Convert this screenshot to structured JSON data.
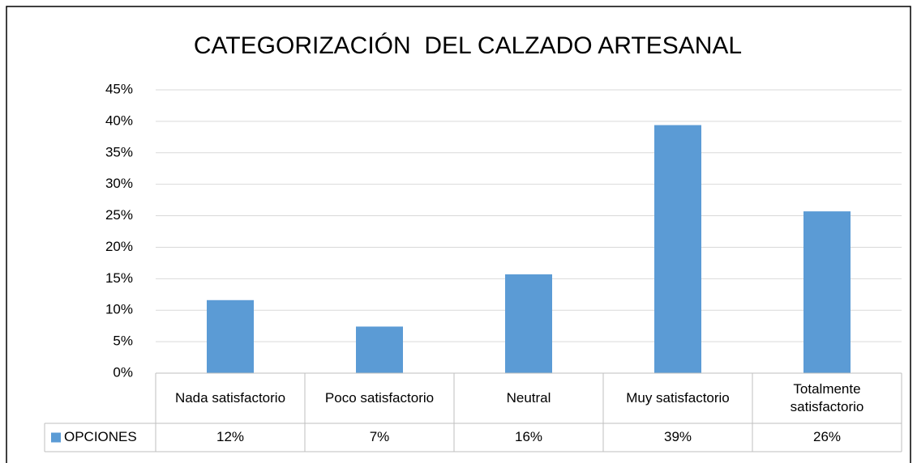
{
  "chart_data": {
    "type": "bar",
    "title": "CATEGORIZACIÓN  DEL CALZADO ARTESANAL",
    "categories": [
      "Nada satisfactorio",
      "Poco satisfactorio",
      "Neutral",
      "Muy satisfactorio",
      "Totalmente satisfactorio"
    ],
    "series": [
      {
        "name": "OPCIONES",
        "color": "#5b9bd5",
        "values": [
          11.6,
          7.4,
          15.7,
          39.4,
          25.7
        ],
        "value_labels": [
          "12%",
          "7%",
          "16%",
          "39%",
          "26%"
        ]
      }
    ],
    "ylim": [
      0,
      45
    ],
    "yticks": [
      {
        "value": 0,
        "label": "0%"
      },
      {
        "value": 5,
        "label": "5%"
      },
      {
        "value": 10,
        "label": "10%"
      },
      {
        "value": 15,
        "label": "15%"
      },
      {
        "value": 20,
        "label": "20%"
      },
      {
        "value": 25,
        "label": "25%"
      },
      {
        "value": 30,
        "label": "30%"
      },
      {
        "value": 35,
        "label": "35%"
      },
      {
        "value": 40,
        "label": "40%"
      },
      {
        "value": 45,
        "label": "45%"
      }
    ],
    "grid": true
  }
}
